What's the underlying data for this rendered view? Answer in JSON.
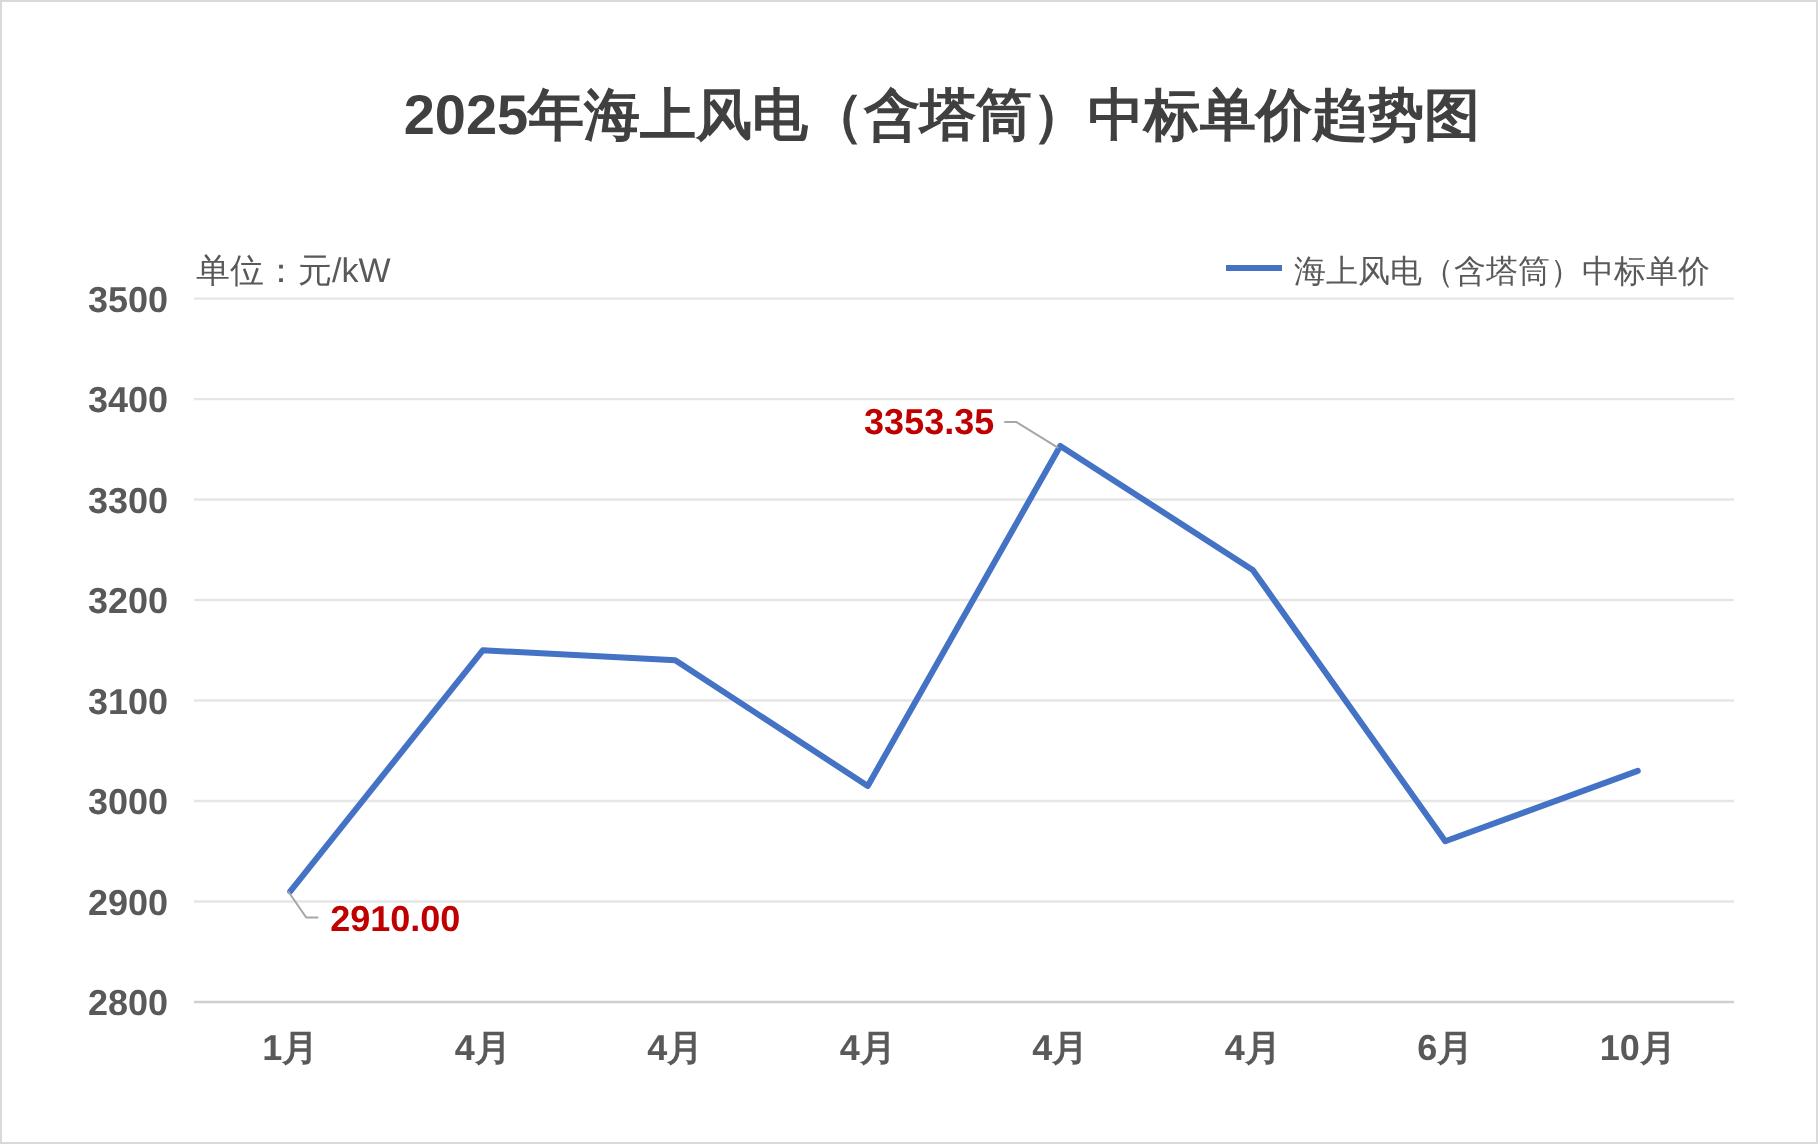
{
  "chart_data": {
    "type": "line",
    "title": "2025年海上风电（含塔筒）中标单价趋势图",
    "ylabel": "单位：元/kW",
    "categories": [
      "1月",
      "4月",
      "4月",
      "4月",
      "4月",
      "4月",
      "6月",
      "10月"
    ],
    "series": [
      {
        "name": "海上风电（含塔筒）中标单价",
        "color": "#4472c4",
        "values": [
          2910.0,
          3150,
          3140,
          3015,
          3353.35,
          3230,
          2960,
          3030
        ],
        "value_labels": [
          "2910.00",
          null,
          null,
          null,
          "3353.35",
          null,
          null,
          null
        ]
      }
    ],
    "ylim": [
      2800,
      3500
    ],
    "yticks": [
      2800,
      2900,
      3000,
      3100,
      3200,
      3300,
      3400,
      3500
    ],
    "grid": "y",
    "legend": "top right",
    "marker": "none",
    "line_style": "solid"
  }
}
